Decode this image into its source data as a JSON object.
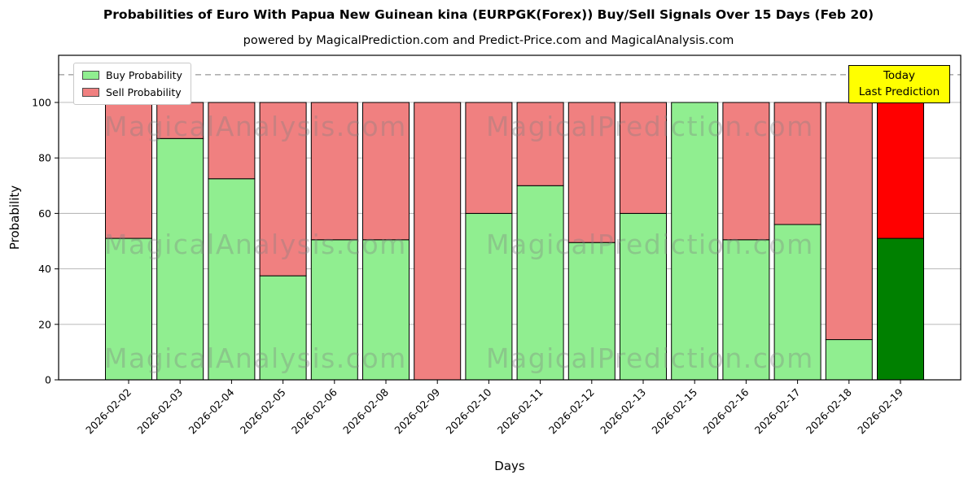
{
  "title": "Probabilities of Euro With Papua New Guinean kina (EURPGK(Forex)) Buy/Sell Signals Over 15 Days (Feb 20)",
  "subtitle": "powered by MagicalPrediction.com and Predict-Price.com and MagicalAnalysis.com",
  "annotation": {
    "line1": "Today",
    "line2": "Last Prediction",
    "bg": "#ffff00"
  },
  "watermarks": {
    "left": "MagicalAnalysis.com",
    "right": "MagicalPrediction.com"
  },
  "chart_data": {
    "type": "bar",
    "stacked": true,
    "title": "Probabilities of Euro With Papua New Guinean kina (EURPGK(Forex)) Buy/Sell Signals Over 15 Days (Feb 20)",
    "xlabel": "Days",
    "ylabel": "Probability",
    "ylim": [
      0,
      117
    ],
    "yticks": [
      0,
      20,
      40,
      60,
      80,
      100
    ],
    "dashed_line_y": 110,
    "grid": true,
    "legend_position": "upper left",
    "categories": [
      "2026-02-02",
      "2026-02-03",
      "2026-02-04",
      "2026-02-05",
      "2026-02-06",
      "2026-02-08",
      "2026-02-09",
      "2026-02-10",
      "2026-02-11",
      "2026-02-12",
      "2026-02-13",
      "2026-02-15",
      "2026-02-16",
      "2026-02-17",
      "2026-02-18",
      "2026-02-19"
    ],
    "series": [
      {
        "name": "Buy Probability",
        "color": "#90ee90",
        "highlight_color": "#008000",
        "values": [
          51,
          87,
          72.5,
          37.5,
          50.5,
          50.5,
          0,
          60,
          70,
          49.5,
          60,
          100,
          50.5,
          56,
          14.5,
          51
        ]
      },
      {
        "name": "Sell Probability",
        "color": "#f08080",
        "highlight_color": "#ff0000",
        "values": [
          49,
          13,
          27.5,
          62.5,
          49.5,
          49.5,
          100,
          40,
          30,
          50.5,
          40,
          0,
          49.5,
          44,
          85.5,
          49
        ]
      }
    ],
    "highlight_index": 15,
    "bar_edge_color": "#000000",
    "grid_color": "#b0b0b0",
    "dashed_line_color": "#7f7f7f"
  }
}
